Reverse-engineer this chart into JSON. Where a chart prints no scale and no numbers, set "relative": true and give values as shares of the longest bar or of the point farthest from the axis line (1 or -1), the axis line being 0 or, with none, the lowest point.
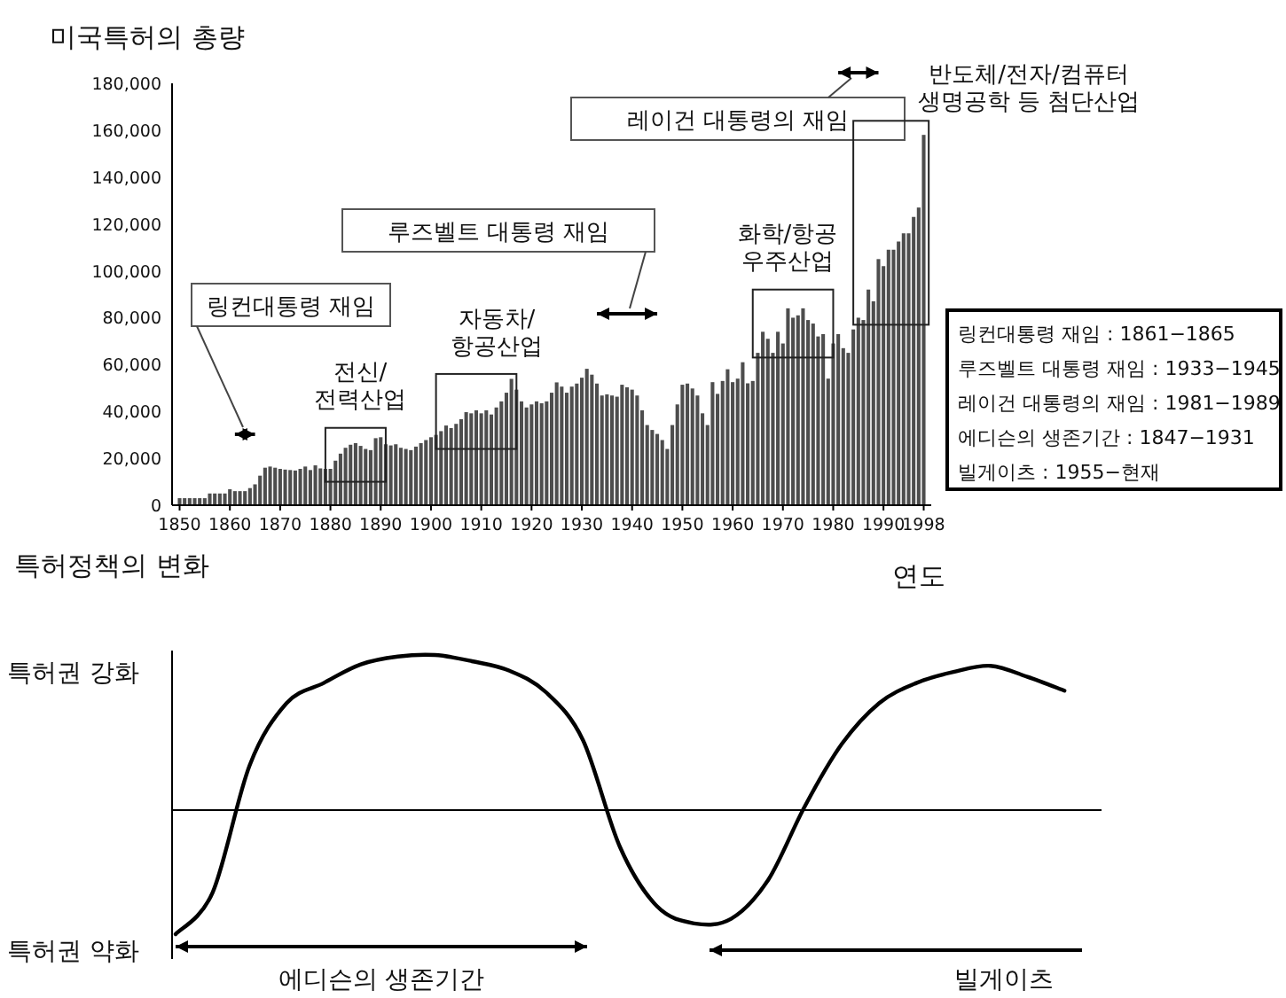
{
  "chart_data": [
    {
      "type": "bar",
      "title": "미국특허의 총량",
      "xlabel": "연도",
      "color": "#4d4d4d",
      "x": [
        1850,
        1851,
        1852,
        1853,
        1854,
        1855,
        1856,
        1857,
        1858,
        1859,
        1860,
        1861,
        1862,
        1863,
        1864,
        1865,
        1866,
        1867,
        1868,
        1869,
        1870,
        1871,
        1872,
        1873,
        1874,
        1875,
        1876,
        1877,
        1878,
        1879,
        1880,
        1881,
        1882,
        1883,
        1884,
        1885,
        1886,
        1887,
        1888,
        1889,
        1890,
        1891,
        1892,
        1893,
        1894,
        1895,
        1896,
        1897,
        1898,
        1899,
        1900,
        1901,
        1902,
        1903,
        1904,
        1905,
        1906,
        1907,
        1908,
        1909,
        1910,
        1911,
        1912,
        1913,
        1914,
        1915,
        1916,
        1917,
        1918,
        1919,
        1920,
        1921,
        1922,
        1923,
        1924,
        1925,
        1926,
        1927,
        1928,
        1929,
        1930,
        1931,
        1932,
        1933,
        1934,
        1935,
        1936,
        1937,
        1938,
        1939,
        1940,
        1941,
        1942,
        1943,
        1944,
        1945,
        1946,
        1947,
        1948,
        1949,
        1950,
        1951,
        1952,
        1953,
        1954,
        1955,
        1956,
        1957,
        1958,
        1959,
        1960,
        1961,
        1962,
        1963,
        1964,
        1965,
        1966,
        1967,
        1968,
        1969,
        1970,
        1971,
        1972,
        1973,
        1974,
        1975,
        1976,
        1977,
        1978,
        1979,
        1980,
        1981,
        1982,
        1983,
        1984,
        1985,
        1986,
        1987,
        1988,
        1989,
        1990,
        1991,
        1992,
        1993,
        1994,
        1995,
        1996,
        1997,
        1998
      ],
      "values": [
        3000,
        3000,
        3000,
        3000,
        3000,
        3000,
        5000,
        5000,
        5000,
        5000,
        6800,
        6000,
        6000,
        6000,
        7300,
        8900,
        12600,
        16000,
        16500,
        16000,
        15500,
        15200,
        15000,
        14800,
        15500,
        16500,
        15000,
        17000,
        15700,
        15500,
        15500,
        19000,
        22000,
        24500,
        25800,
        26500,
        25300,
        24000,
        23500,
        28600,
        29000,
        26000,
        25500,
        26000,
        24500,
        24000,
        23500,
        25000,
        26500,
        27800,
        29000,
        30000,
        31600,
        34000,
        32900,
        34700,
        36700,
        39700,
        39200,
        40500,
        39200,
        40500,
        38700,
        41700,
        44300,
        48000,
        53900,
        49300,
        44300,
        41700,
        43000,
        44300,
        43500,
        44300,
        48000,
        52400,
        50600,
        48000,
        50600,
        51900,
        54400,
        58200,
        55700,
        51900,
        46800,
        47300,
        46800,
        46300,
        51400,
        50300,
        49300,
        46800,
        40500,
        34200,
        32100,
        30400,
        27800,
        24000,
        34200,
        43000,
        51400,
        51900,
        49800,
        46800,
        39200,
        34200,
        52500,
        47500,
        53000,
        58000,
        52500,
        54000,
        61000,
        52000,
        53000,
        65000,
        74000,
        71000,
        65000,
        74000,
        69000,
        84000,
        80000,
        81000,
        84000,
        79000,
        77500,
        72000,
        73000,
        54000,
        69000,
        73000,
        67000,
        65000,
        75000,
        80000,
        79000,
        92000,
        87000,
        105000,
        102000,
        109000,
        109000,
        112500,
        116000,
        116000,
        123000,
        127000,
        158000
      ],
      "xlim": [
        1848.5,
        1999.5
      ],
      "ylim": [
        0,
        180000
      ],
      "xticks": [
        1850,
        1860,
        1870,
        1880,
        1890,
        1900,
        1910,
        1920,
        1930,
        1940,
        1950,
        1960,
        1970,
        1980,
        1990,
        1998
      ],
      "yticks": [
        0,
        {
          "value": 20000,
          "label": "20,000"
        },
        {
          "value": 40000,
          "label": "40,000"
        },
        {
          "value": 60000,
          "label": "60,000"
        },
        {
          "value": 80000,
          "label": "80,000"
        },
        {
          "value": 100000,
          "label": "100,000"
        },
        {
          "value": 120000,
          "label": "120,000"
        },
        {
          "value": 140000,
          "label": "140,000"
        },
        {
          "value": 160000,
          "label": "160,000"
        },
        {
          "value": 180000,
          "label": "180,000"
        }
      ],
      "annotations": [
        "링컨대통령 재임",
        "루즈벨트 대통령 재임",
        "레이건 대통령의 재임",
        "전신/\n전력산업",
        "자동차/\n항공산업",
        "화학/항공\n우주산업",
        "반도체/전자/컴퓨터\n생명공학 등 첨단산업",
        "링컨대통령 재임 : 1861−1865",
        "루즈벨트 대통령 재임 : 1933−1945",
        "레이건 대통령의 재임 : 1981−1989",
        "에디슨의 생존기간 : 1847−1931",
        "빌게이츠 : 1955−현재"
      ]
    },
    {
      "type": "line",
      "title": "특허정책의 변화",
      "relative": true,
      "color": "#000000",
      "categories": [
        null,
        null,
        null,
        null,
        null,
        null,
        null,
        null,
        null,
        null,
        null,
        null,
        null,
        null,
        null,
        null,
        null,
        null,
        null,
        null,
        null,
        null,
        null,
        null,
        null,
        null
      ],
      "values": [
        -0.8,
        -0.53,
        0.29,
        0.69,
        0.82,
        0.94,
        0.99,
        1,
        0.96,
        0.9,
        0.76,
        0.45,
        -0.24,
        -0.62,
        -0.73,
        -0.7,
        -0.45,
        0.03,
        0.43,
        0.69,
        0.82,
        0.89,
        0.93,
        0.86,
        0.77,
        null
      ],
      "annotations": [
        "특허권 강화",
        "특허권 약화",
        "에디슨의 생존기간",
        "빌게이츠"
      ]
    }
  ]
}
